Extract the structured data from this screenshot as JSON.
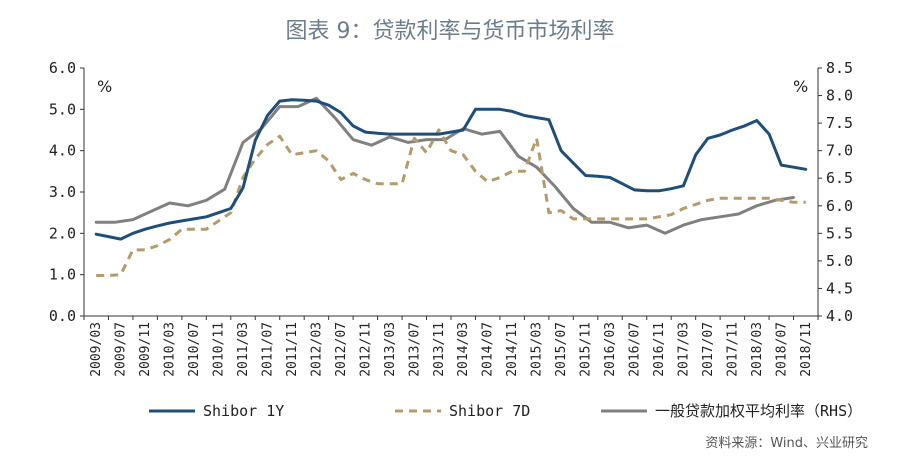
{
  "chart_data": {
    "type": "line",
    "title": "图表 9：贷款利率与货币市场利率",
    "source": "资料来源：Wind、兴业研究",
    "left_unit": "%",
    "right_unit": "%",
    "ylim_left": [
      0.0,
      6.0
    ],
    "ylim_right": [
      4.0,
      8.5
    ],
    "yticks_left": [
      "0.0",
      "1.0",
      "2.0",
      "3.0",
      "4.0",
      "5.0",
      "6.0"
    ],
    "yticks_right": [
      "4.0",
      "4.5",
      "5.0",
      "5.5",
      "6.0",
      "6.5",
      "7.0",
      "7.5",
      "8.0",
      "8.5"
    ],
    "x_tick_labels": [
      "2009/03",
      "2009/07",
      "2009/11",
      "2010/03",
      "2010/07",
      "2010/11",
      "2011/03",
      "2011/07",
      "2011/11",
      "2012/03",
      "2012/07",
      "2012/11",
      "2013/03",
      "2013/07",
      "2013/11",
      "2014/03",
      "2014/07",
      "2014/11",
      "2015/03",
      "2015/07",
      "2015/11",
      "2016/03",
      "2016/07",
      "2016/11",
      "2017/03",
      "2017/07",
      "2017/11",
      "2018/03",
      "2018/07",
      "2018/11"
    ],
    "legend_placement": "bottom",
    "series": [
      {
        "name": "Shibor 1Y",
        "axis": "left",
        "color": "#1f4e79",
        "style": "solid",
        "x": [
          "2009/03",
          "2009/05",
          "2009/07",
          "2009/09",
          "2009/11",
          "2010/01",
          "2010/03",
          "2010/05",
          "2010/07",
          "2010/09",
          "2010/11",
          "2011/01",
          "2011/03",
          "2011/05",
          "2011/07",
          "2011/09",
          "2011/11",
          "2012/01",
          "2012/03",
          "2012/05",
          "2012/07",
          "2012/09",
          "2012/11",
          "2013/01",
          "2013/03",
          "2013/05",
          "2013/07",
          "2013/09",
          "2013/11",
          "2014/01",
          "2014/03",
          "2014/05",
          "2014/07",
          "2014/09",
          "2014/11",
          "2015/01",
          "2015/03",
          "2015/05",
          "2015/07",
          "2015/09",
          "2015/11",
          "2016/01",
          "2016/03",
          "2016/05",
          "2016/07",
          "2016/09",
          "2016/11",
          "2017/01",
          "2017/03",
          "2017/05",
          "2017/07",
          "2017/09",
          "2017/11",
          "2018/01",
          "2018/03",
          "2018/05",
          "2018/07",
          "2018/09",
          "2018/11"
        ],
        "values": [
          1.98,
          1.92,
          1.86,
          2.0,
          2.1,
          2.18,
          2.25,
          2.3,
          2.35,
          2.4,
          2.5,
          2.6,
          3.1,
          4.25,
          4.85,
          5.2,
          5.23,
          5.22,
          5.2,
          5.1,
          4.92,
          4.6,
          4.45,
          4.42,
          4.4,
          4.4,
          4.4,
          4.4,
          4.4,
          4.45,
          4.5,
          5.0,
          5.0,
          5.0,
          4.95,
          4.85,
          4.8,
          4.75,
          4.0,
          3.7,
          3.4,
          3.38,
          3.35,
          3.2,
          3.05,
          3.03,
          3.03,
          3.08,
          3.15,
          3.9,
          4.3,
          4.38,
          4.5,
          4.6,
          4.73,
          4.4,
          3.65,
          3.6,
          3.55
        ]
      },
      {
        "name": "Shibor 7D",
        "axis": "left",
        "color": "#b59a6b",
        "style": "dashed",
        "x": [
          "2009/03",
          "2009/05",
          "2009/07",
          "2009/09",
          "2009/11",
          "2010/01",
          "2010/03",
          "2010/05",
          "2010/07",
          "2010/09",
          "2010/11",
          "2011/01",
          "2011/03",
          "2011/05",
          "2011/07",
          "2011/09",
          "2011/11",
          "2012/01",
          "2012/03",
          "2012/05",
          "2012/07",
          "2012/09",
          "2012/11",
          "2013/01",
          "2013/03",
          "2013/05",
          "2013/07",
          "2013/09",
          "2013/11",
          "2014/01",
          "2014/03",
          "2014/05",
          "2014/07",
          "2014/09",
          "2014/11",
          "2015/01",
          "2015/03",
          "2015/05",
          "2015/07",
          "2015/09",
          "2015/11",
          "2016/01",
          "2016/03",
          "2016/05",
          "2016/07",
          "2016/09",
          "2016/11",
          "2017/01",
          "2017/03",
          "2017/05",
          "2017/07",
          "2017/09",
          "2017/11",
          "2018/01",
          "2018/03",
          "2018/05",
          "2018/07",
          "2018/09",
          "2018/11"
        ],
        "values": [
          0.98,
          0.98,
          1.0,
          1.6,
          1.6,
          1.7,
          1.85,
          2.1,
          2.1,
          2.1,
          2.3,
          2.5,
          3.35,
          3.8,
          4.15,
          4.35,
          3.9,
          3.95,
          4.0,
          3.75,
          3.3,
          3.45,
          3.3,
          3.2,
          3.2,
          3.2,
          4.3,
          3.95,
          4.5,
          4.0,
          3.9,
          3.5,
          3.25,
          3.35,
          3.5,
          3.5,
          4.3,
          2.5,
          2.55,
          2.35,
          2.35,
          2.35,
          2.35,
          2.35,
          2.35,
          2.35,
          2.4,
          2.45,
          2.6,
          2.7,
          2.8,
          2.85,
          2.85,
          2.85,
          2.85,
          2.85,
          2.8,
          2.75,
          2.75
        ]
      },
      {
        "name": "一般贷款加权平均利率（RHS）",
        "axis": "right",
        "color": "#808080",
        "style": "solid",
        "x": [
          "2009/03",
          "2009/06",
          "2009/09",
          "2009/12",
          "2010/03",
          "2010/06",
          "2010/09",
          "2010/12",
          "2011/03",
          "2011/06",
          "2011/09",
          "2011/12",
          "2012/03",
          "2012/06",
          "2012/09",
          "2012/12",
          "2013/03",
          "2013/06",
          "2013/09",
          "2013/12",
          "2014/03",
          "2014/06",
          "2014/09",
          "2014/12",
          "2015/03",
          "2015/06",
          "2015/09",
          "2015/12",
          "2016/03",
          "2016/06",
          "2016/09",
          "2016/12",
          "2017/03",
          "2017/06",
          "2017/09",
          "2017/12",
          "2018/03",
          "2018/06",
          "2018/09"
        ],
        "values": [
          5.7,
          5.7,
          5.75,
          5.9,
          6.05,
          6.0,
          6.1,
          6.3,
          7.15,
          7.4,
          7.8,
          7.8,
          7.95,
          7.6,
          7.2,
          7.1,
          7.25,
          7.15,
          7.2,
          7.2,
          7.4,
          7.3,
          7.35,
          6.9,
          6.7,
          6.35,
          5.95,
          5.7,
          5.7,
          5.6,
          5.65,
          5.5,
          5.65,
          5.75,
          5.8,
          5.85,
          6.0,
          6.1,
          6.15
        ]
      }
    ]
  }
}
